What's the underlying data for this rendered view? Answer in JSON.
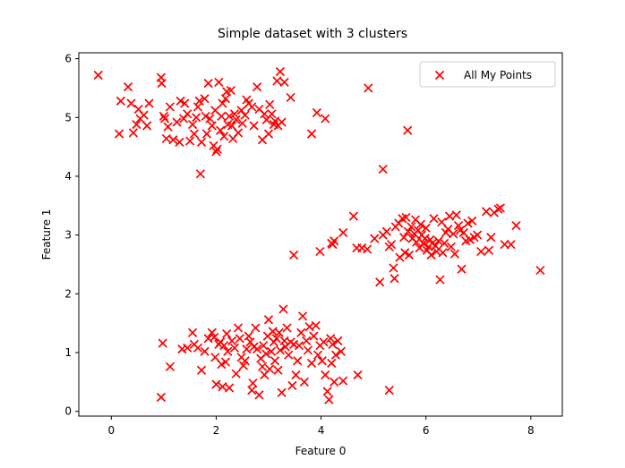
{
  "chart_data": {
    "type": "scatter",
    "title": "Simple dataset with 3 clusters",
    "xlabel": "Feature 0",
    "ylabel": "Feature 1",
    "xlim": [
      -0.62,
      8.6
    ],
    "ylim": [
      -0.08,
      6.1
    ],
    "xticks": [
      0,
      2,
      4,
      6,
      8
    ],
    "yticks": [
      0,
      1,
      2,
      3,
      4,
      5,
      6
    ],
    "grid": false,
    "legend_position": "top-right",
    "colors": {
      "series": "#ff0000",
      "axes": "#000000",
      "background": "#ffffff"
    },
    "series": [
      {
        "name": "All My Points",
        "marker": "x",
        "points": [
          [
            -0.25,
            5.72
          ],
          [
            0.15,
            4.72
          ],
          [
            0.18,
            5.28
          ],
          [
            0.32,
            5.52
          ],
          [
            0.38,
            5.24
          ],
          [
            0.42,
            4.74
          ],
          [
            0.48,
            4.88
          ],
          [
            0.52,
            5.14
          ],
          [
            0.55,
            4.98
          ],
          [
            0.62,
            5.04
          ],
          [
            0.68,
            4.86
          ],
          [
            0.72,
            5.24
          ],
          [
            0.95,
            5.68
          ],
          [
            0.96,
            5.58
          ],
          [
            1.0,
            5.02
          ],
          [
            1.02,
            4.98
          ],
          [
            1.05,
            4.64
          ],
          [
            1.08,
            4.84
          ],
          [
            1.12,
            5.18
          ],
          [
            1.18,
            4.62
          ],
          [
            1.25,
            4.92
          ],
          [
            1.3,
            4.58
          ],
          [
            1.32,
            5.28
          ],
          [
            1.38,
            4.98
          ],
          [
            1.4,
            5.24
          ],
          [
            1.45,
            5.06
          ],
          [
            1.5,
            4.6
          ],
          [
            1.55,
            4.88
          ],
          [
            1.58,
            4.72
          ],
          [
            1.62,
            5.0
          ],
          [
            1.65,
            5.18
          ],
          [
            1.68,
            5.28
          ],
          [
            1.7,
            4.04
          ],
          [
            1.72,
            4.58
          ],
          [
            1.78,
            5.32
          ],
          [
            1.8,
            5.02
          ],
          [
            1.82,
            4.72
          ],
          [
            1.85,
            5.58
          ],
          [
            1.88,
            4.98
          ],
          [
            1.92,
            4.86
          ],
          [
            1.95,
            4.52
          ],
          [
            1.98,
            5.12
          ],
          [
            2.0,
            4.42
          ],
          [
            2.02,
            4.46
          ],
          [
            2.05,
            5.6
          ],
          [
            2.08,
            4.78
          ],
          [
            2.1,
            5.02
          ],
          [
            2.12,
            5.24
          ],
          [
            2.15,
            4.68
          ],
          [
            2.18,
            5.32
          ],
          [
            2.2,
            5.44
          ],
          [
            2.22,
            4.88
          ],
          [
            2.25,
            5.02
          ],
          [
            2.28,
            5.46
          ],
          [
            2.3,
            4.86
          ],
          [
            2.32,
            4.64
          ],
          [
            2.35,
            5.06
          ],
          [
            2.38,
            4.96
          ],
          [
            2.42,
            4.74
          ],
          [
            2.48,
            5.12
          ],
          [
            2.5,
            4.9
          ],
          [
            2.55,
            5.04
          ],
          [
            2.58,
            5.3
          ],
          [
            2.62,
            5.24
          ],
          [
            2.68,
            5.18
          ],
          [
            2.72,
            4.86
          ],
          [
            2.78,
            5.52
          ],
          [
            2.82,
            5.14
          ],
          [
            2.88,
            4.62
          ],
          [
            2.92,
            5.06
          ],
          [
            2.96,
            4.96
          ],
          [
            3.0,
            4.72
          ],
          [
            3.02,
            5.22
          ],
          [
            3.06,
            5.06
          ],
          [
            3.1,
            4.88
          ],
          [
            3.12,
            4.94
          ],
          [
            3.16,
            5.62
          ],
          [
            3.18,
            4.86
          ],
          [
            3.22,
            5.78
          ],
          [
            3.25,
            4.92
          ],
          [
            3.3,
            5.6
          ],
          [
            3.42,
            5.34
          ],
          [
            3.82,
            4.72
          ],
          [
            3.92,
            5.08
          ],
          [
            4.08,
            4.98
          ],
          [
            4.9,
            5.5
          ],
          [
            5.18,
            4.12
          ],
          [
            5.65,
            4.78
          ],
          [
            3.48,
            2.66
          ],
          [
            3.98,
            2.72
          ],
          [
            4.2,
            2.86
          ],
          [
            4.22,
            2.84
          ],
          [
            4.25,
            2.9
          ],
          [
            4.42,
            3.04
          ],
          [
            4.62,
            3.32
          ],
          [
            4.68,
            2.78
          ],
          [
            4.78,
            2.78
          ],
          [
            4.88,
            2.76
          ],
          [
            5.02,
            2.94
          ],
          [
            5.12,
            2.2
          ],
          [
            5.18,
            3.0
          ],
          [
            5.25,
            3.06
          ],
          [
            5.3,
            2.8
          ],
          [
            5.34,
            2.84
          ],
          [
            5.38,
            2.44
          ],
          [
            5.4,
            2.26
          ],
          [
            5.42,
            3.14
          ],
          [
            5.48,
            3.2
          ],
          [
            5.5,
            2.62
          ],
          [
            5.55,
            3.28
          ],
          [
            5.58,
            2.96
          ],
          [
            5.6,
            2.7
          ],
          [
            5.62,
            3.3
          ],
          [
            5.66,
            3.06
          ],
          [
            5.68,
            2.66
          ],
          [
            5.72,
            3.14
          ],
          [
            5.74,
            2.94
          ],
          [
            5.78,
            3.02
          ],
          [
            5.8,
            3.26
          ],
          [
            5.82,
            2.88
          ],
          [
            5.85,
            3.08
          ],
          [
            5.88,
            2.78
          ],
          [
            5.9,
            3.18
          ],
          [
            5.92,
            3.0
          ],
          [
            5.95,
            2.86
          ],
          [
            5.98,
            2.94
          ],
          [
            6.0,
            3.12
          ],
          [
            6.02,
            2.74
          ],
          [
            6.05,
            2.8
          ],
          [
            6.08,
            2.92
          ],
          [
            6.1,
            2.66
          ],
          [
            6.12,
            2.86
          ],
          [
            6.15,
            3.28
          ],
          [
            6.18,
            2.82
          ],
          [
            6.2,
            2.72
          ],
          [
            6.24,
            2.9
          ],
          [
            6.27,
            2.24
          ],
          [
            6.3,
            3.22
          ],
          [
            6.32,
            2.7
          ],
          [
            6.35,
            2.86
          ],
          [
            6.38,
            3.04
          ],
          [
            6.42,
            3.1
          ],
          [
            6.45,
            3.32
          ],
          [
            6.48,
            2.8
          ],
          [
            6.52,
            3.02
          ],
          [
            6.55,
            2.68
          ],
          [
            6.58,
            3.34
          ],
          [
            6.62,
            3.16
          ],
          [
            6.65,
            3.08
          ],
          [
            6.68,
            2.42
          ],
          [
            6.72,
            3.04
          ],
          [
            6.76,
            2.9
          ],
          [
            6.8,
            3.2
          ],
          [
            6.84,
            2.92
          ],
          [
            6.88,
            3.24
          ],
          [
            6.92,
            2.96
          ],
          [
            6.98,
            3.0
          ],
          [
            7.05,
            2.72
          ],
          [
            7.15,
            3.4
          ],
          [
            7.2,
            2.74
          ],
          [
            7.24,
            2.96
          ],
          [
            7.3,
            3.38
          ],
          [
            7.38,
            3.44
          ],
          [
            7.42,
            3.46
          ],
          [
            7.5,
            2.84
          ],
          [
            7.62,
            2.84
          ],
          [
            7.72,
            3.16
          ],
          [
            8.18,
            2.4
          ],
          [
            0.95,
            0.24
          ],
          [
            0.98,
            1.16
          ],
          [
            1.12,
            0.76
          ],
          [
            1.35,
            1.06
          ],
          [
            1.45,
            1.08
          ],
          [
            1.55,
            1.34
          ],
          [
            1.58,
            1.14
          ],
          [
            1.65,
            1.08
          ],
          [
            1.72,
            0.7
          ],
          [
            1.78,
            1.02
          ],
          [
            1.85,
            1.24
          ],
          [
            1.92,
            1.34
          ],
          [
            1.96,
            1.26
          ],
          [
            1.98,
            0.92
          ],
          [
            2.0,
            0.46
          ],
          [
            2.05,
            1.14
          ],
          [
            2.08,
            1.18
          ],
          [
            2.1,
            0.8
          ],
          [
            2.12,
            0.42
          ],
          [
            2.15,
            1.12
          ],
          [
            2.18,
            0.84
          ],
          [
            2.2,
            1.32
          ],
          [
            2.22,
            1.02
          ],
          [
            2.25,
            0.4
          ],
          [
            2.3,
            1.2
          ],
          [
            2.35,
            1.08
          ],
          [
            2.38,
            0.64
          ],
          [
            2.42,
            1.42
          ],
          [
            2.45,
            1.24
          ],
          [
            2.48,
            0.92
          ],
          [
            2.52,
            0.78
          ],
          [
            2.55,
            0.86
          ],
          [
            2.58,
            1.06
          ],
          [
            2.62,
            1.28
          ],
          [
            2.65,
            1.18
          ],
          [
            2.68,
            0.36
          ],
          [
            2.7,
            0.48
          ],
          [
            2.72,
            1.1
          ],
          [
            2.75,
            1.42
          ],
          [
            2.78,
            1.06
          ],
          [
            2.82,
            0.28
          ],
          [
            2.85,
            0.9
          ],
          [
            2.88,
            0.76
          ],
          [
            2.9,
            1.12
          ],
          [
            2.92,
            0.62
          ],
          [
            2.95,
            0.98
          ],
          [
            2.98,
            1.28
          ],
          [
            3.0,
            1.56
          ],
          [
            3.02,
            0.72
          ],
          [
            3.05,
            1.02
          ],
          [
            3.08,
            1.36
          ],
          [
            3.1,
            1.18
          ],
          [
            3.12,
            0.86
          ],
          [
            3.15,
            1.24
          ],
          [
            3.18,
            0.7
          ],
          [
            3.2,
            1.34
          ],
          [
            3.22,
            1.04
          ],
          [
            3.25,
            0.32
          ],
          [
            3.28,
            1.74
          ],
          [
            3.3,
            1.2
          ],
          [
            3.32,
            1.1
          ],
          [
            3.35,
            1.42
          ],
          [
            3.38,
            0.96
          ],
          [
            3.42,
            1.18
          ],
          [
            3.45,
            0.44
          ],
          [
            3.48,
            1.14
          ],
          [
            3.52,
            0.62
          ],
          [
            3.55,
            0.86
          ],
          [
            3.58,
            1.12
          ],
          [
            3.62,
            1.34
          ],
          [
            3.65,
            1.62
          ],
          [
            3.68,
            0.5
          ],
          [
            3.72,
            1.2
          ],
          [
            3.75,
            1.04
          ],
          [
            3.78,
            1.44
          ],
          [
            3.82,
            0.82
          ],
          [
            3.86,
            1.28
          ],
          [
            3.9,
            1.46
          ],
          [
            3.94,
            0.96
          ],
          [
            3.98,
            1.12
          ],
          [
            4.02,
            0.86
          ],
          [
            4.05,
            1.18
          ],
          [
            4.08,
            0.62
          ],
          [
            4.12,
            0.34
          ],
          [
            4.15,
            0.2
          ],
          [
            4.18,
            1.24
          ],
          [
            4.2,
            0.82
          ],
          [
            4.22,
            1.14
          ],
          [
            4.25,
            0.5
          ],
          [
            4.28,
            0.96
          ],
          [
            4.32,
            1.2
          ],
          [
            4.38,
            1.02
          ],
          [
            4.42,
            0.52
          ],
          [
            4.7,
            0.62
          ],
          [
            5.3,
            0.36
          ]
        ]
      }
    ]
  }
}
